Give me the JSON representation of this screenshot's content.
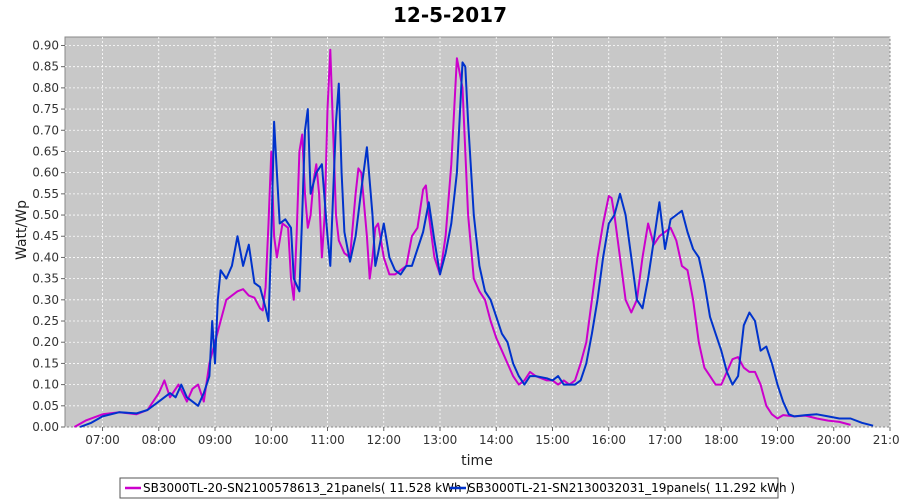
{
  "chart_data": {
    "type": "line",
    "title": "12-5-2017",
    "xlabel": "time",
    "ylabel": "Watt/Wp",
    "x_ticks": [
      "07:00",
      "08:00",
      "09:00",
      "10:00",
      "11:00",
      "12:00",
      "13:00",
      "14:00",
      "15:00",
      "16:00",
      "17:00",
      "18:00",
      "19:00",
      "20:00",
      "21:00"
    ],
    "xlim": [
      6.333,
      21.0
    ],
    "y_ticks": [
      "0.00",
      "0.05",
      "0.10",
      "0.15",
      "0.20",
      "0.25",
      "0.30",
      "0.35",
      "0.40",
      "0.45",
      "0.50",
      "0.55",
      "0.60",
      "0.65",
      "0.70",
      "0.75",
      "0.80",
      "0.85",
      "0.90"
    ],
    "ylim": [
      0,
      0.92
    ],
    "grid": true,
    "legend_position": "bottom",
    "series": [
      {
        "name": "SB3000TL-20-SN2100578613_21panels( 11.528 kWh )",
        "color": "#cc00cc",
        "points": [
          [
            6.5,
            0.0
          ],
          [
            6.7,
            0.015
          ],
          [
            7.0,
            0.03
          ],
          [
            7.3,
            0.035
          ],
          [
            7.6,
            0.03
          ],
          [
            7.8,
            0.04
          ],
          [
            8.0,
            0.08
          ],
          [
            8.1,
            0.11
          ],
          [
            8.2,
            0.07
          ],
          [
            8.35,
            0.1
          ],
          [
            8.5,
            0.06
          ],
          [
            8.6,
            0.09
          ],
          [
            8.7,
            0.1
          ],
          [
            8.8,
            0.06
          ],
          [
            8.9,
            0.15
          ],
          [
            9.0,
            0.2
          ],
          [
            9.1,
            0.25
          ],
          [
            9.2,
            0.3
          ],
          [
            9.3,
            0.31
          ],
          [
            9.4,
            0.32
          ],
          [
            9.5,
            0.325
          ],
          [
            9.6,
            0.31
          ],
          [
            9.7,
            0.305
          ],
          [
            9.8,
            0.28
          ],
          [
            9.85,
            0.275
          ],
          [
            9.9,
            0.33
          ],
          [
            9.95,
            0.48
          ],
          [
            10.0,
            0.65
          ],
          [
            10.05,
            0.45
          ],
          [
            10.1,
            0.4
          ],
          [
            10.2,
            0.48
          ],
          [
            10.3,
            0.47
          ],
          [
            10.35,
            0.35
          ],
          [
            10.4,
            0.3
          ],
          [
            10.45,
            0.45
          ],
          [
            10.5,
            0.65
          ],
          [
            10.55,
            0.69
          ],
          [
            10.6,
            0.55
          ],
          [
            10.65,
            0.47
          ],
          [
            10.7,
            0.5
          ],
          [
            10.75,
            0.58
          ],
          [
            10.8,
            0.62
          ],
          [
            10.85,
            0.55
          ],
          [
            10.9,
            0.4
          ],
          [
            10.95,
            0.5
          ],
          [
            11.0,
            0.75
          ],
          [
            11.05,
            0.89
          ],
          [
            11.1,
            0.7
          ],
          [
            11.15,
            0.5
          ],
          [
            11.2,
            0.44
          ],
          [
            11.3,
            0.41
          ],
          [
            11.4,
            0.4
          ],
          [
            11.5,
            0.55
          ],
          [
            11.55,
            0.61
          ],
          [
            11.6,
            0.6
          ],
          [
            11.7,
            0.45
          ],
          [
            11.75,
            0.35
          ],
          [
            11.8,
            0.4
          ],
          [
            11.85,
            0.47
          ],
          [
            11.9,
            0.48
          ],
          [
            12.0,
            0.4
          ],
          [
            12.1,
            0.36
          ],
          [
            12.2,
            0.36
          ],
          [
            12.3,
            0.37
          ],
          [
            12.4,
            0.38
          ],
          [
            12.5,
            0.45
          ],
          [
            12.6,
            0.47
          ],
          [
            12.7,
            0.56
          ],
          [
            12.75,
            0.57
          ],
          [
            12.8,
            0.5
          ],
          [
            12.9,
            0.4
          ],
          [
            13.0,
            0.36
          ],
          [
            13.1,
            0.45
          ],
          [
            13.2,
            0.62
          ],
          [
            13.3,
            0.87
          ],
          [
            13.4,
            0.8
          ],
          [
            13.5,
            0.5
          ],
          [
            13.6,
            0.35
          ],
          [
            13.7,
            0.32
          ],
          [
            13.8,
            0.3
          ],
          [
            13.9,
            0.25
          ],
          [
            14.0,
            0.21
          ],
          [
            14.1,
            0.18
          ],
          [
            14.2,
            0.15
          ],
          [
            14.3,
            0.12
          ],
          [
            14.4,
            0.1
          ],
          [
            14.5,
            0.11
          ],
          [
            14.6,
            0.13
          ],
          [
            14.7,
            0.12
          ],
          [
            14.9,
            0.11
          ],
          [
            15.0,
            0.11
          ],
          [
            15.1,
            0.1
          ],
          [
            15.2,
            0.11
          ],
          [
            15.3,
            0.1
          ],
          [
            15.4,
            0.11
          ],
          [
            15.5,
            0.15
          ],
          [
            15.6,
            0.2
          ],
          [
            15.7,
            0.3
          ],
          [
            15.8,
            0.4
          ],
          [
            15.9,
            0.48
          ],
          [
            16.0,
            0.545
          ],
          [
            16.05,
            0.54
          ],
          [
            16.1,
            0.5
          ],
          [
            16.2,
            0.4
          ],
          [
            16.3,
            0.3
          ],
          [
            16.4,
            0.27
          ],
          [
            16.5,
            0.3
          ],
          [
            16.6,
            0.4
          ],
          [
            16.7,
            0.48
          ],
          [
            16.8,
            0.43
          ],
          [
            16.9,
            0.45
          ],
          [
            17.0,
            0.46
          ],
          [
            17.1,
            0.47
          ],
          [
            17.2,
            0.44
          ],
          [
            17.3,
            0.38
          ],
          [
            17.4,
            0.37
          ],
          [
            17.5,
            0.3
          ],
          [
            17.6,
            0.2
          ],
          [
            17.7,
            0.14
          ],
          [
            17.8,
            0.12
          ],
          [
            17.9,
            0.1
          ],
          [
            18.0,
            0.1
          ],
          [
            18.1,
            0.13
          ],
          [
            18.2,
            0.16
          ],
          [
            18.3,
            0.165
          ],
          [
            18.4,
            0.14
          ],
          [
            18.5,
            0.13
          ],
          [
            18.6,
            0.13
          ],
          [
            18.7,
            0.1
          ],
          [
            18.8,
            0.05
          ],
          [
            18.9,
            0.03
          ],
          [
            19.0,
            0.02
          ],
          [
            19.1,
            0.028
          ],
          [
            19.3,
            0.025
          ],
          [
            19.5,
            0.027
          ],
          [
            19.7,
            0.02
          ],
          [
            19.9,
            0.015
          ],
          [
            20.1,
            0.012
          ],
          [
            20.3,
            0.005
          ]
        ]
      },
      {
        "name": "SB3000TL-21-SN2130032031_19panels( 11.292 kWh )",
        "color": "#0033cc",
        "points": [
          [
            6.6,
            0.0
          ],
          [
            6.8,
            0.01
          ],
          [
            7.0,
            0.025
          ],
          [
            7.3,
            0.035
          ],
          [
            7.6,
            0.032
          ],
          [
            7.8,
            0.04
          ],
          [
            8.0,
            0.06
          ],
          [
            8.2,
            0.08
          ],
          [
            8.3,
            0.07
          ],
          [
            8.4,
            0.1
          ],
          [
            8.5,
            0.07
          ],
          [
            8.6,
            0.06
          ],
          [
            8.7,
            0.05
          ],
          [
            8.8,
            0.08
          ],
          [
            8.9,
            0.12
          ],
          [
            8.95,
            0.25
          ],
          [
            9.0,
            0.15
          ],
          [
            9.05,
            0.3
          ],
          [
            9.1,
            0.37
          ],
          [
            9.2,
            0.35
          ],
          [
            9.3,
            0.38
          ],
          [
            9.4,
            0.45
          ],
          [
            9.5,
            0.38
          ],
          [
            9.6,
            0.43
          ],
          [
            9.7,
            0.34
          ],
          [
            9.8,
            0.33
          ],
          [
            9.9,
            0.28
          ],
          [
            9.95,
            0.25
          ],
          [
            10.0,
            0.45
          ],
          [
            10.05,
            0.72
          ],
          [
            10.1,
            0.6
          ],
          [
            10.15,
            0.48
          ],
          [
            10.25,
            0.49
          ],
          [
            10.35,
            0.47
          ],
          [
            10.4,
            0.35
          ],
          [
            10.5,
            0.32
          ],
          [
            10.55,
            0.5
          ],
          [
            10.6,
            0.7
          ],
          [
            10.65,
            0.75
          ],
          [
            10.7,
            0.55
          ],
          [
            10.8,
            0.6
          ],
          [
            10.9,
            0.62
          ],
          [
            11.0,
            0.45
          ],
          [
            11.05,
            0.38
          ],
          [
            11.15,
            0.72
          ],
          [
            11.2,
            0.81
          ],
          [
            11.25,
            0.6
          ],
          [
            11.3,
            0.46
          ],
          [
            11.4,
            0.39
          ],
          [
            11.5,
            0.45
          ],
          [
            11.6,
            0.56
          ],
          [
            11.7,
            0.66
          ],
          [
            11.8,
            0.5
          ],
          [
            11.85,
            0.38
          ],
          [
            11.9,
            0.41
          ],
          [
            12.0,
            0.48
          ],
          [
            12.1,
            0.4
          ],
          [
            12.2,
            0.37
          ],
          [
            12.3,
            0.36
          ],
          [
            12.4,
            0.38
          ],
          [
            12.5,
            0.38
          ],
          [
            12.6,
            0.42
          ],
          [
            12.7,
            0.46
          ],
          [
            12.8,
            0.53
          ],
          [
            12.9,
            0.44
          ],
          [
            13.0,
            0.36
          ],
          [
            13.1,
            0.41
          ],
          [
            13.2,
            0.48
          ],
          [
            13.3,
            0.6
          ],
          [
            13.4,
            0.86
          ],
          [
            13.45,
            0.85
          ],
          [
            13.5,
            0.72
          ],
          [
            13.6,
            0.5
          ],
          [
            13.7,
            0.38
          ],
          [
            13.8,
            0.32
          ],
          [
            13.9,
            0.3
          ],
          [
            14.0,
            0.26
          ],
          [
            14.1,
            0.22
          ],
          [
            14.2,
            0.2
          ],
          [
            14.3,
            0.15
          ],
          [
            14.4,
            0.12
          ],
          [
            14.5,
            0.1
          ],
          [
            14.6,
            0.12
          ],
          [
            14.7,
            0.12
          ],
          [
            14.9,
            0.115
          ],
          [
            15.0,
            0.11
          ],
          [
            15.1,
            0.12
          ],
          [
            15.2,
            0.1
          ],
          [
            15.4,
            0.1
          ],
          [
            15.5,
            0.11
          ],
          [
            15.6,
            0.15
          ],
          [
            15.7,
            0.22
          ],
          [
            15.8,
            0.3
          ],
          [
            15.9,
            0.4
          ],
          [
            16.0,
            0.48
          ],
          [
            16.1,
            0.5
          ],
          [
            16.2,
            0.55
          ],
          [
            16.3,
            0.5
          ],
          [
            16.4,
            0.4
          ],
          [
            16.5,
            0.3
          ],
          [
            16.6,
            0.28
          ],
          [
            16.7,
            0.35
          ],
          [
            16.8,
            0.44
          ],
          [
            16.9,
            0.53
          ],
          [
            17.0,
            0.42
          ],
          [
            17.1,
            0.49
          ],
          [
            17.2,
            0.5
          ],
          [
            17.3,
            0.51
          ],
          [
            17.4,
            0.46
          ],
          [
            17.5,
            0.42
          ],
          [
            17.6,
            0.4
          ],
          [
            17.7,
            0.34
          ],
          [
            17.8,
            0.26
          ],
          [
            17.9,
            0.22
          ],
          [
            18.0,
            0.18
          ],
          [
            18.1,
            0.13
          ],
          [
            18.2,
            0.1
          ],
          [
            18.3,
            0.12
          ],
          [
            18.35,
            0.18
          ],
          [
            18.4,
            0.24
          ],
          [
            18.5,
            0.27
          ],
          [
            18.6,
            0.25
          ],
          [
            18.7,
            0.18
          ],
          [
            18.8,
            0.19
          ],
          [
            18.9,
            0.15
          ],
          [
            19.0,
            0.1
          ],
          [
            19.1,
            0.06
          ],
          [
            19.2,
            0.03
          ],
          [
            19.3,
            0.025
          ],
          [
            19.5,
            0.028
          ],
          [
            19.7,
            0.03
          ],
          [
            19.9,
            0.025
          ],
          [
            20.1,
            0.02
          ],
          [
            20.3,
            0.02
          ],
          [
            20.5,
            0.01
          ],
          [
            20.7,
            0.003
          ]
        ]
      }
    ]
  }
}
